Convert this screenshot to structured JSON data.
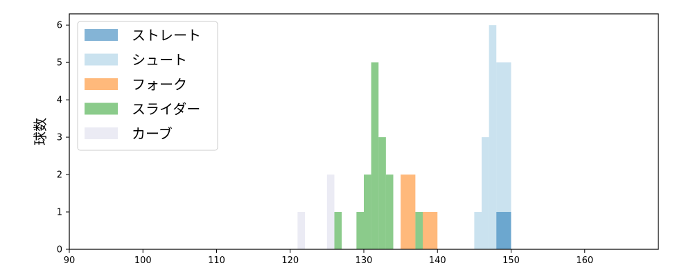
{
  "chart_data": {
    "type": "bar",
    "subtype": "histogram",
    "title": "",
    "xlabel": "",
    "ylabel": "球数",
    "xlim": [
      90,
      170
    ],
    "ylim": [
      0,
      6.3
    ],
    "xticks": [
      90,
      100,
      110,
      120,
      130,
      140,
      150,
      160
    ],
    "yticks": [
      0,
      1,
      2,
      3,
      4,
      5,
      6
    ],
    "grid": false,
    "legend_position": "top-left",
    "series": [
      {
        "name": "ストレート",
        "color": "#1f77b4",
        "bins": [
          {
            "x0": 148,
            "x1": 150,
            "count": 1
          }
        ]
      },
      {
        "name": "シュート",
        "color": "#9ecae1",
        "bins": [
          {
            "x0": 145,
            "x1": 146,
            "count": 1
          },
          {
            "x0": 146,
            "x1": 147,
            "count": 3
          },
          {
            "x0": 147,
            "x1": 148,
            "count": 6
          },
          {
            "x0": 148,
            "x1": 150,
            "count": 5
          }
        ]
      },
      {
        "name": "フォーク",
        "color": "#ff7f0e",
        "bins": [
          {
            "x0": 135,
            "x1": 137,
            "count": 2
          },
          {
            "x0": 138,
            "x1": 140,
            "count": 1
          }
        ]
      },
      {
        "name": "スライダー",
        "color": "#2ca02c",
        "bins": [
          {
            "x0": 126,
            "x1": 127,
            "count": 1
          },
          {
            "x0": 129,
            "x1": 130,
            "count": 1
          },
          {
            "x0": 130,
            "x1": 131,
            "count": 2
          },
          {
            "x0": 131,
            "x1": 132,
            "count": 5
          },
          {
            "x0": 132,
            "x1": 133,
            "count": 3
          },
          {
            "x0": 133,
            "x1": 134,
            "count": 2
          },
          {
            "x0": 137,
            "x1": 138,
            "count": 1
          }
        ]
      },
      {
        "name": "カーブ",
        "color": "#dadaeb",
        "bins": [
          {
            "x0": 121,
            "x1": 122,
            "count": 1
          },
          {
            "x0": 125,
            "x1": 126,
            "count": 2
          }
        ]
      }
    ]
  }
}
